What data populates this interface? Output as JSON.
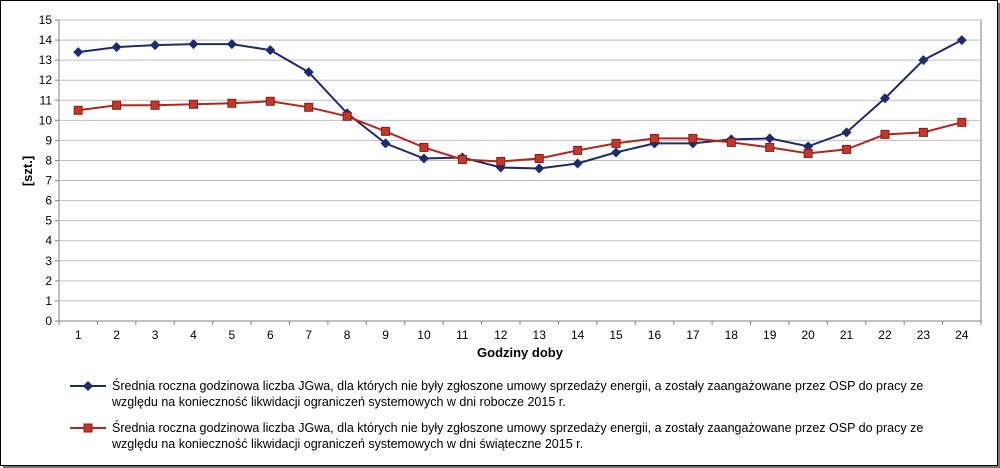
{
  "chart_data": {
    "type": "line",
    "xlabel": "Godziny doby",
    "ylabel": "[szt.]",
    "ylim": [
      0,
      15
    ],
    "yticks": [
      0,
      1,
      2,
      3,
      4,
      5,
      6,
      7,
      8,
      9,
      10,
      11,
      12,
      13,
      14,
      15
    ],
    "categories": [
      "1",
      "2",
      "3",
      "4",
      "5",
      "6",
      "7",
      "8",
      "9",
      "10",
      "11",
      "12",
      "13",
      "14",
      "15",
      "16",
      "17",
      "18",
      "19",
      "20",
      "21",
      "22",
      "23",
      "24"
    ],
    "grid": true,
    "legend_position": "bottom",
    "series": [
      {
        "name": "Średnia roczna godzinowa liczba JGwa, dla których nie były zgłoszone umowy sprzedaży energii, a zostały zaangażowane przez OSP do pracy ze względu na konieczność likwidacji ograniczeń systemowych w dni robocze 2015 r.",
        "color": "#1f2a6b",
        "marker": "diamond",
        "values": [
          13.4,
          13.65,
          13.75,
          13.8,
          13.8,
          13.5,
          12.4,
          10.35,
          8.85,
          8.1,
          8.15,
          7.65,
          7.6,
          7.85,
          8.4,
          8.85,
          8.85,
          9.05,
          9.1,
          8.7,
          9.4,
          11.1,
          13.0,
          14.0
        ]
      },
      {
        "name": "Średnia roczna godzinowa liczba JGwa, dla których nie były zgłoszone umowy sprzedaży energii, a zostały zaangażowane przez OSP do pracy ze względu na konieczność likwidacji ograniczeń systemowych w dni świąteczne 2015 r.",
        "color": "#b3261e",
        "marker": "square",
        "values": [
          10.5,
          10.75,
          10.75,
          10.8,
          10.85,
          10.95,
          10.65,
          10.2,
          9.45,
          8.65,
          8.05,
          7.95,
          8.1,
          8.5,
          8.85,
          9.1,
          9.1,
          8.9,
          8.65,
          8.35,
          8.55,
          9.3,
          9.4,
          9.9
        ]
      }
    ]
  }
}
